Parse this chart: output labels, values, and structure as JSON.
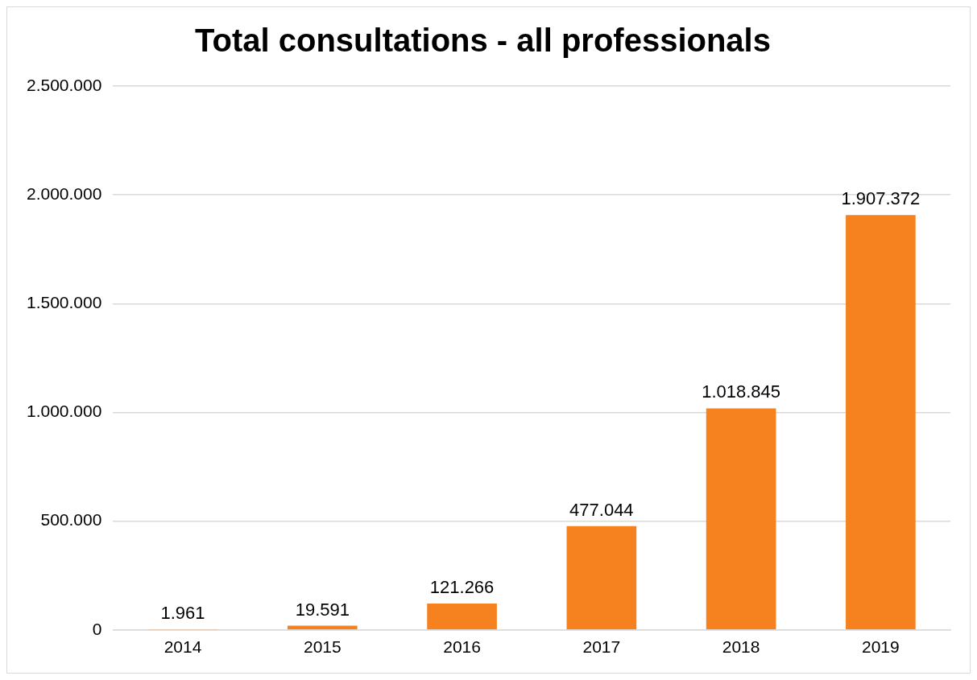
{
  "chart_data": {
    "type": "bar",
    "title": "Total consultations - all professionals",
    "categories": [
      "2014",
      "2015",
      "2016",
      "2017",
      "2018",
      "2019"
    ],
    "values": [
      1961,
      19591,
      121266,
      477044,
      1018845,
      1907372
    ],
    "value_labels": [
      "1.961",
      "19.591",
      "121.266",
      "477.044",
      "1.018.845",
      "1.907.372"
    ],
    "color": "#f5821f",
    "ylim": [
      0,
      2500000
    ],
    "yticks": [
      0,
      {
        "value": 500000,
        "label": "500.000"
      },
      {
        "value": 1000000,
        "label": "1.000.000"
      },
      {
        "value": 1500000,
        "label": "1.500.000"
      },
      {
        "value": 2000000,
        "label": "2.000.000"
      },
      {
        "value": 2500000,
        "label": "2.500.000"
      }
    ],
    "grid": "y",
    "legend": false
  }
}
